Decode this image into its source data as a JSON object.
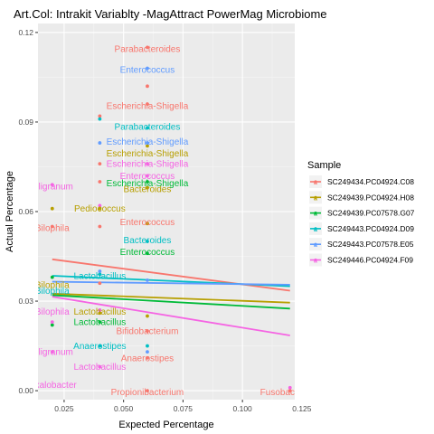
{
  "chart_data": {
    "type": "scatter",
    "title": "Art.Col: Intrakit Variablty -MagAttract PowerMag Microbiome",
    "xlabel": "Expected Percentage",
    "ylabel": "Actual Percentage",
    "xlim": [
      0.014,
      0.122
    ],
    "ylim": [
      -0.003,
      0.123
    ],
    "x_ticks": [
      0.025,
      0.05,
      0.075,
      0.1,
      0.125
    ],
    "x_tick_labels": [
      "0.025",
      "0.050",
      "0.075",
      "0.100",
      "0.125"
    ],
    "y_ticks": [
      0,
      0.03,
      0.06,
      0.09,
      0.12
    ],
    "y_tick_labels": [
      "0.00",
      "0.03",
      "0.06",
      "0.09",
      "0.12"
    ],
    "grid": true,
    "legend": {
      "title": "Sample",
      "position": "right"
    },
    "series": [
      {
        "name": "SC249434.PC04924.C08",
        "color": "#F8766D",
        "points": [
          [
            0.02,
            0.055
          ],
          [
            0.04,
            0.092
          ],
          [
            0.04,
            0.076
          ],
          [
            0.04,
            0.07
          ],
          [
            0.04,
            0.055
          ],
          [
            0.04,
            0.036
          ],
          [
            0.06,
            0.115
          ],
          [
            0.06,
            0.102
          ],
          [
            0.06,
            0.096
          ],
          [
            0.06,
            0.056
          ],
          [
            0.06,
            0.02
          ],
          [
            0.06,
            0.011
          ],
          [
            0.06,
            0.0
          ],
          [
            0.12,
            0.0
          ]
        ],
        "labels": [
          {
            "text": "Parabacteroides",
            "x": 0.06,
            "y": 0.1145
          },
          {
            "text": "Escherichia-Shigella",
            "x": 0.06,
            "y": 0.0955
          },
          {
            "text": "Enterococcus",
            "x": 0.06,
            "y": 0.0565
          },
          {
            "text": "Bifidobacterium",
            "x": 0.06,
            "y": 0.02
          },
          {
            "text": "Anaerostipes",
            "x": 0.06,
            "y": 0.011
          },
          {
            "text": "Propionibacterium",
            "x": 0.06,
            "y": -0.0005
          },
          {
            "text": "Fusobacterium",
            "x": 0.12,
            "y": -0.0005
          },
          {
            "text": "Bilophila",
            "x": 0.02,
            "y": 0.0545
          }
        ],
        "fit": [
          [
            0.02,
            0.044
          ],
          [
            0.12,
            0.0335
          ]
        ]
      },
      {
        "name": "SC249439.PC04924.H08",
        "color": "#B79F00",
        "points": [
          [
            0.02,
            0.061
          ],
          [
            0.04,
            0.061
          ],
          [
            0.04,
            0.026
          ],
          [
            0.06,
            0.082
          ],
          [
            0.06,
            0.068
          ],
          [
            0.06,
            0.056
          ],
          [
            0.06,
            0.025
          ]
        ],
        "labels": [
          {
            "text": "Escherichia-Shigella",
            "x": 0.06,
            "y": 0.0795
          },
          {
            "text": "Bacteroides",
            "x": 0.06,
            "y": 0.0675
          },
          {
            "text": "Pediococcus",
            "x": 0.04,
            "y": 0.061
          },
          {
            "text": "Lactobacillus",
            "x": 0.04,
            "y": 0.0265
          },
          {
            "text": "Bilophila",
            "x": 0.02,
            "y": 0.0355
          }
        ],
        "fit": [
          [
            0.02,
            0.0325
          ],
          [
            0.12,
            0.0295
          ]
        ]
      },
      {
        "name": "SC249439.PC07578.G07",
        "color": "#00BA38",
        "points": [
          [
            0.02,
            0.038
          ],
          [
            0.02,
            0.022
          ],
          [
            0.04,
            0.023
          ],
          [
            0.06,
            0.07
          ],
          [
            0.06,
            0.046
          ]
        ],
        "labels": [
          {
            "text": "Escherichia-Shigella",
            "x": 0.06,
            "y": 0.0695
          },
          {
            "text": "Enterococcus",
            "x": 0.06,
            "y": 0.0465
          },
          {
            "text": "Lactobacillus",
            "x": 0.04,
            "y": 0.023
          }
        ],
        "fit": [
          [
            0.02,
            0.032
          ],
          [
            0.12,
            0.0275
          ]
        ]
      },
      {
        "name": "SC249443.PC04924.D09",
        "color": "#00BFC4",
        "points": [
          [
            0.04,
            0.091
          ],
          [
            0.04,
            0.039
          ],
          [
            0.04,
            0.015
          ],
          [
            0.06,
            0.088
          ],
          [
            0.06,
            0.05
          ],
          [
            0.06,
            0.015
          ]
        ],
        "labels": [
          {
            "text": "Parabacteroides",
            "x": 0.06,
            "y": 0.0885
          },
          {
            "text": "Bacteroides",
            "x": 0.06,
            "y": 0.0505
          },
          {
            "text": "Lactobacillus",
            "x": 0.04,
            "y": 0.0385
          },
          {
            "text": "Anaerostipes",
            "x": 0.04,
            "y": 0.015
          },
          {
            "text": "Bilophila",
            "x": 0.02,
            "y": 0.0335
          }
        ],
        "fit": [
          [
            0.02,
            0.0385
          ],
          [
            0.12,
            0.035
          ]
        ]
      },
      {
        "name": "SC249443.PC07578.E05",
        "color": "#619CFF",
        "points": [
          [
            0.04,
            0.083
          ],
          [
            0.04,
            0.04
          ],
          [
            0.06,
            0.108
          ],
          [
            0.06,
            0.083
          ],
          [
            0.06,
            0.037
          ],
          [
            0.06,
            0.013
          ]
        ],
        "labels": [
          {
            "text": "Enterococcus",
            "x": 0.06,
            "y": 0.1075
          },
          {
            "text": "Escherichia-Shigella",
            "x": 0.06,
            "y": 0.0835
          }
        ],
        "fit": [
          [
            0.02,
            0.0365
          ],
          [
            0.12,
            0.0355
          ]
        ]
      },
      {
        "name": "SC249446.PC04924.F09",
        "color": "#F564E3",
        "points": [
          [
            0.02,
            0.069
          ],
          [
            0.02,
            0.023
          ],
          [
            0.02,
            0.013
          ],
          [
            0.04,
            0.062
          ],
          [
            0.04,
            0.027
          ],
          [
            0.04,
            0.008
          ],
          [
            0.06,
            0.076
          ],
          [
            0.06,
            0.072
          ],
          [
            0.12,
            0.001
          ]
        ],
        "labels": [
          {
            "text": "Escherichia-Shigella",
            "x": 0.06,
            "y": 0.076
          },
          {
            "text": "Enterococcus",
            "x": 0.06,
            "y": 0.072
          },
          {
            "text": "Lactobacillus",
            "x": 0.04,
            "y": 0.008
          },
          {
            "text": "Oligranum",
            "x": 0.02,
            "y": 0.0685
          },
          {
            "text": "Oligranum",
            "x": 0.02,
            "y": 0.013
          },
          {
            "text": "Bilophila",
            "x": 0.02,
            "y": 0.0265
          },
          {
            "text": "Oxalobacter",
            "x": 0.02,
            "y": 0.002
          }
        ],
        "fit": [
          [
            0.02,
            0.0315
          ],
          [
            0.12,
            0.0185
          ]
        ]
      }
    ]
  }
}
